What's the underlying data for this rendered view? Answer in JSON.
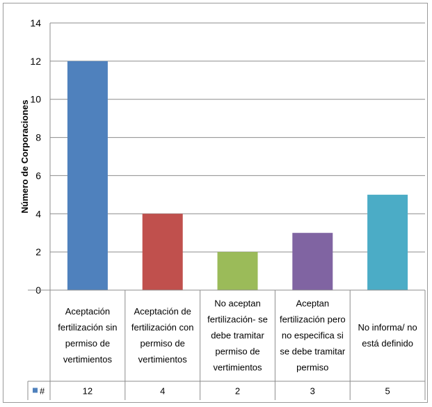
{
  "chart_data": {
    "type": "bar",
    "ylabel": "Número de Corporaciones",
    "ylim": [
      0,
      14
    ],
    "yticks": [
      0,
      2,
      4,
      6,
      8,
      10,
      12,
      14
    ],
    "grid": true,
    "categories": [
      [
        "Aceptación",
        "fertilización sin",
        "permiso de",
        "vertimientos"
      ],
      [
        "Aceptación de",
        "fertilización con",
        "permiso de",
        "vertimientos"
      ],
      [
        "No aceptan",
        "fertilización- se",
        "debe tramitar",
        "permiso de",
        "vertimientos"
      ],
      [
        "Aceptan",
        "fertilización pero",
        "no especifica si",
        "se debe tramitar",
        "permiso"
      ],
      [
        "No informa/ no",
        "está definido"
      ]
    ],
    "series": [
      {
        "name": "#",
        "values": [
          12,
          4,
          2,
          3,
          5
        ]
      }
    ],
    "bar_colors": [
      "#4f81bd",
      "#c0504d",
      "#9bbb59",
      "#8064a2",
      "#4bacc6"
    ],
    "legend_color": "#4f81bd",
    "legend": "data-table"
  }
}
